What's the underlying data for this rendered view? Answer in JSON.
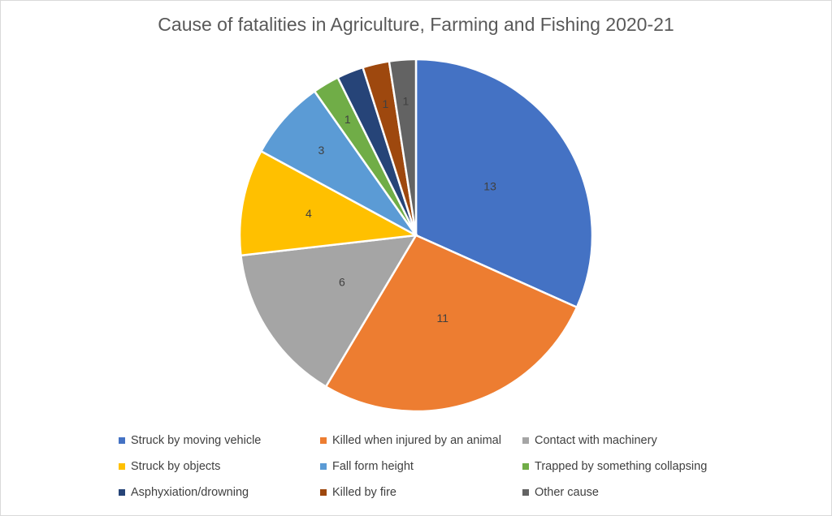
{
  "chart_data": {
    "type": "pie",
    "title": "Cause of fatalities in Agriculture, Farming and Fishing 2020-21",
    "categories": [
      "Struck by moving vehicle",
      "Killed when injured by an animal",
      "Contact with machinery",
      "Struck by objects",
      "Fall form height",
      "Trapped by something collapsing",
      "Asphyxiation/drowning",
      "Killed by fire",
      "Other cause"
    ],
    "values": [
      13,
      11,
      6,
      4,
      3,
      1,
      1,
      1,
      1
    ],
    "colors": [
      "#4472c4",
      "#ed7d31",
      "#a5a5a5",
      "#ffc000",
      "#5b9bd5",
      "#70ad47",
      "#264478",
      "#9e480e",
      "#636363"
    ],
    "legend_position": "bottom",
    "data_labels": [
      "13",
      "11",
      "6",
      "4",
      "3",
      "1",
      "",
      "1",
      "1"
    ]
  }
}
